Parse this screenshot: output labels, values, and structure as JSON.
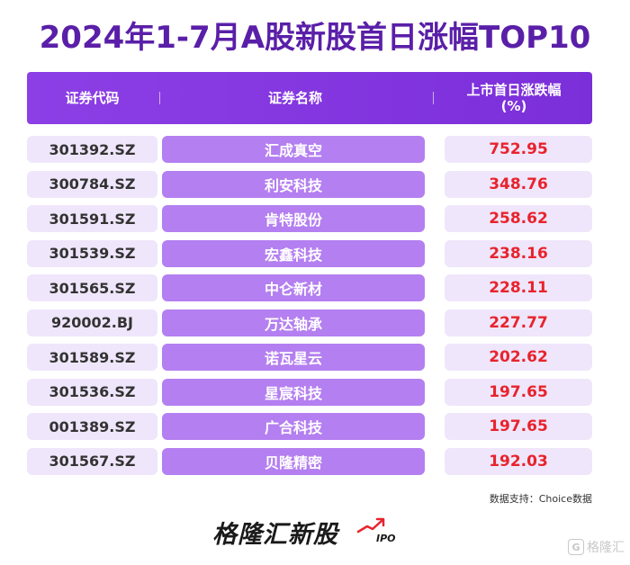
{
  "title": "2024年1-7月A股新股首日涨幅TOP10",
  "header": {
    "col_code": "证券代码",
    "col_name": "证券名称",
    "col_pct_line1": "上市首日涨跌幅",
    "col_pct_line2": "(%)"
  },
  "rows": [
    {
      "code": "301392.SZ",
      "name": "汇成真空",
      "pct": "752.95"
    },
    {
      "code": "300784.SZ",
      "name": "利安科技",
      "pct": "348.76"
    },
    {
      "code": "301591.SZ",
      "name": "肯特股份",
      "pct": "258.62"
    },
    {
      "code": "301539.SZ",
      "name": "宏鑫科技",
      "pct": "238.16"
    },
    {
      "code": "301565.SZ",
      "name": "中仑新材",
      "pct": "228.11"
    },
    {
      "code": "920002.BJ",
      "name": "万达轴承",
      "pct": "227.77"
    },
    {
      "code": "301589.SZ",
      "name": "诺瓦星云",
      "pct": "202.62"
    },
    {
      "code": "301536.SZ",
      "name": "星宸科技",
      "pct": "197.65"
    },
    {
      "code": "001389.SZ",
      "name": "广合科技",
      "pct": "197.65"
    },
    {
      "code": "301567.SZ",
      "name": "贝隆精密",
      "pct": "192.03"
    }
  ],
  "source": "数据支持：Choice数据",
  "brand": {
    "name": "格隆汇新股",
    "tag": "IPO"
  },
  "watermark": {
    "icon": "G",
    "text": "格隆汇"
  },
  "colors": {
    "title": "#5a1fa8",
    "header": "#8d3fe6",
    "name_cell": "#b47ff0",
    "light_cell": "#efe6fb",
    "pct_text": "#e8232d"
  }
}
